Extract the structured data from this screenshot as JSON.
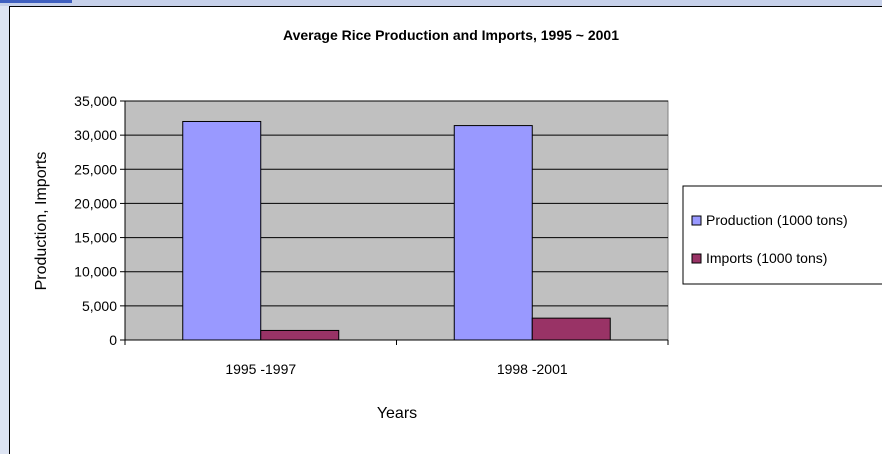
{
  "chart_data": {
    "type": "bar",
    "title": "Average Rice Production and Imports, 1995 ~ 2001",
    "xlabel": "Years",
    "ylabel": "Production, Imports",
    "categories": [
      "1995 -1997",
      "1998 -2001"
    ],
    "series": [
      {
        "name": "Production  (1000 tons)",
        "values": [
          32000,
          31400
        ],
        "color": "#9999ff"
      },
      {
        "name": "Imports (1000 tons)",
        "values": [
          1400,
          3200
        ],
        "color": "#993366"
      }
    ],
    "ylim": [
      0,
      35000
    ],
    "yticks": [
      "0",
      "5,000",
      "10,000",
      "15,000",
      "20,000",
      "25,000",
      "30,000",
      "35,000"
    ],
    "plot_background": "#c0c0c0",
    "grid": true,
    "legend_position": "right"
  }
}
